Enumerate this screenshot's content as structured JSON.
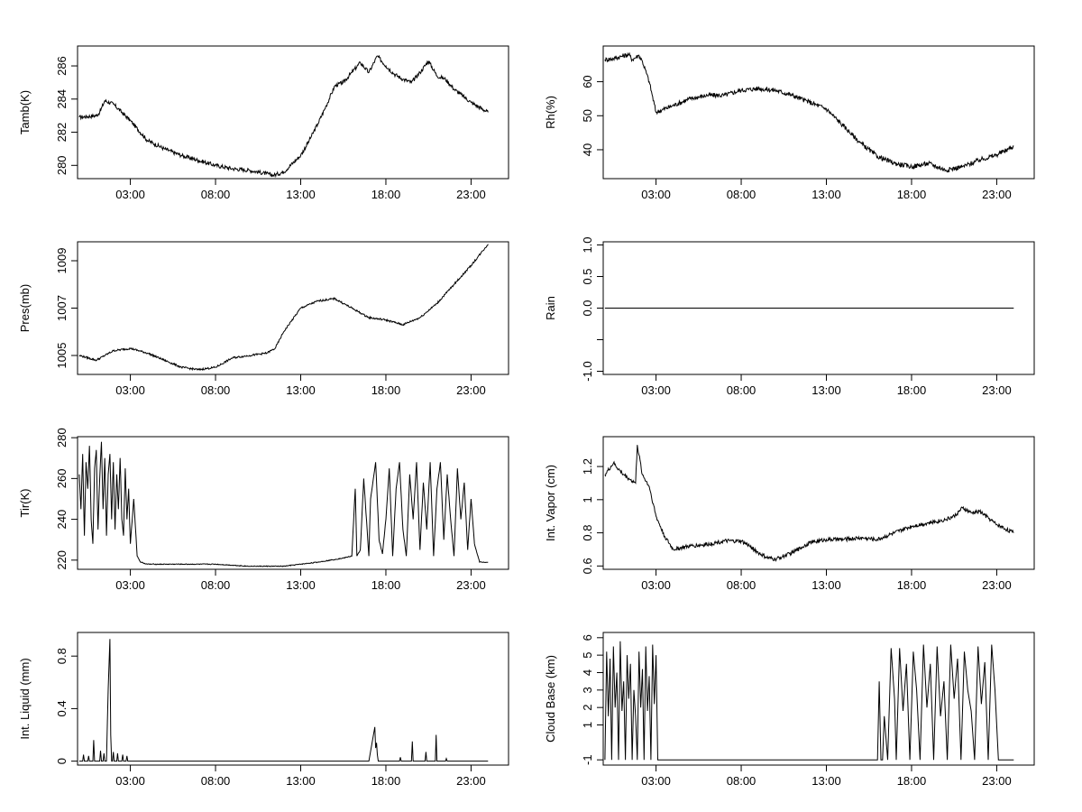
{
  "chart_data": [
    {
      "type": "line",
      "ylabel": "Tamb(K)",
      "xlabel": "",
      "x_ticks": [
        "03:00",
        "08:00",
        "13:00",
        "18:00",
        "23:00"
      ],
      "x_tick_hours": [
        3,
        8,
        13,
        18,
        23
      ],
      "xlim_hours": [
        -0.1,
        25.2
      ],
      "y_ticks": [
        280,
        282,
        284,
        286
      ],
      "ylim": [
        279.2,
        287.2
      ],
      "noise": 0.12,
      "x": [
        0,
        1,
        1.2,
        1.5,
        2,
        3,
        4,
        5,
        6,
        7,
        8,
        9,
        10,
        11,
        11.4,
        12,
        13,
        13.5,
        14,
        14.5,
        15,
        15.5,
        16,
        16.5,
        17,
        17.5,
        18,
        18.5,
        19,
        19.5,
        20,
        20.5,
        21,
        21.5,
        22,
        23,
        24
      ],
      "y": [
        282.9,
        283.0,
        283.2,
        283.9,
        283.7,
        282.7,
        281.5,
        281.0,
        280.6,
        280.3,
        280.0,
        279.8,
        279.7,
        279.5,
        279.4,
        279.6,
        280.6,
        281.5,
        282.5,
        283.6,
        284.8,
        285.0,
        285.6,
        286.2,
        285.6,
        286.6,
        286.0,
        285.5,
        285.2,
        285.0,
        285.6,
        286.3,
        285.4,
        285.2,
        284.6,
        283.8,
        283.2
      ]
    },
    {
      "type": "line",
      "ylabel": "Rh(%)",
      "xlabel": "",
      "x_ticks": [
        "03:00",
        "08:00",
        "13:00",
        "18:00",
        "23:00"
      ],
      "x_tick_hours": [
        3,
        8,
        13,
        18,
        23
      ],
      "xlim_hours": [
        -0.1,
        25.2
      ],
      "y_ticks": [
        40,
        50,
        60
      ],
      "ylim": [
        31.5,
        70.5
      ],
      "noise": 0.7,
      "x": [
        0,
        0.5,
        1,
        1.4,
        1.6,
        2,
        2.2,
        2.6,
        3,
        4,
        5,
        6,
        7,
        8,
        9,
        10,
        11,
        12,
        13,
        14,
        15,
        16,
        17,
        18,
        19,
        20,
        21,
        22,
        23,
        24
      ],
      "y": [
        66.5,
        66.8,
        67.5,
        68,
        66.5,
        67.8,
        66,
        60,
        51,
        53,
        55,
        56,
        56,
        57.5,
        58,
        57.5,
        56,
        54,
        52,
        47,
        42,
        38,
        36,
        35,
        36,
        34,
        35,
        37,
        38.5,
        41
      ]
    },
    {
      "type": "line",
      "ylabel": "Pres(mb)",
      "xlabel": "",
      "x_ticks": [
        "03:00",
        "08:00",
        "13:00",
        "18:00",
        "23:00"
      ],
      "x_tick_hours": [
        3,
        8,
        13,
        18,
        23
      ],
      "xlim_hours": [
        -0.1,
        25.2
      ],
      "y_ticks": [
        1005,
        1007,
        1009
      ],
      "ylim": [
        1004.2,
        1009.8
      ],
      "noise": 0.04,
      "x": [
        0,
        1,
        2,
        3,
        4,
        5,
        6,
        7,
        8,
        9,
        10,
        11,
        11.5,
        12,
        13,
        14,
        15,
        16,
        17,
        18,
        19,
        20,
        21,
        22,
        23,
        24
      ],
      "y": [
        1005.0,
        1004.8,
        1005.2,
        1005.3,
        1005.1,
        1004.8,
        1004.5,
        1004.4,
        1004.5,
        1004.9,
        1005.0,
        1005.1,
        1005.3,
        1006.0,
        1007.0,
        1007.3,
        1007.4,
        1007.0,
        1006.6,
        1006.5,
        1006.3,
        1006.6,
        1007.2,
        1008.0,
        1008.8,
        1009.7
      ]
    },
    {
      "type": "line",
      "ylabel": "Rain",
      "xlabel": "",
      "x_ticks": [
        "03:00",
        "08:00",
        "13:00",
        "18:00",
        "23:00"
      ],
      "x_tick_hours": [
        3,
        8,
        13,
        18,
        23
      ],
      "xlim_hours": [
        -0.1,
        25.2
      ],
      "y_ticks": [
        -1.0,
        -0.5,
        0.0,
        0.5,
        1.0
      ],
      "y_tick_labels": [
        "-1.0",
        "",
        "0.0",
        "0.5",
        "1.0"
      ],
      "ylim": [
        -1.05,
        1.05
      ],
      "noise": 0,
      "x": [
        0,
        24
      ],
      "y": [
        0,
        0
      ]
    },
    {
      "type": "line",
      "ylabel": "Tir(K)",
      "xlabel": "",
      "x_ticks": [
        "03:00",
        "08:00",
        "13:00",
        "18:00",
        "23:00"
      ],
      "x_tick_hours": [
        3,
        8,
        13,
        18,
        23
      ],
      "xlim_hours": [
        -0.1,
        25.2
      ],
      "y_ticks": [
        220,
        240,
        260,
        280
      ],
      "ylim": [
        215.5,
        280.5
      ],
      "noise": 0.2,
      "x": [
        0,
        0.1,
        0.2,
        0.3,
        0.4,
        0.5,
        0.6,
        0.7,
        0.8,
        0.9,
        1.0,
        1.1,
        1.2,
        1.3,
        1.4,
        1.5,
        1.6,
        1.7,
        1.8,
        1.9,
        2.0,
        2.1,
        2.2,
        2.3,
        2.4,
        2.5,
        2.6,
        2.7,
        2.8,
        2.9,
        3.0,
        3.2,
        3.4,
        3.6,
        4,
        6,
        8,
        10,
        12,
        14,
        15.5,
        16,
        16.2,
        16.3,
        16.5,
        16.7,
        17.0,
        17.1,
        17.4,
        17.6,
        17.8,
        18.0,
        18.2,
        18.4,
        18.6,
        18.8,
        19.0,
        19.2,
        19.4,
        19.6,
        19.8,
        20.0,
        20.2,
        20.4,
        20.6,
        20.8,
        21.0,
        21.2,
        21.4,
        21.6,
        21.8,
        22.0,
        22.2,
        22.4,
        22.6,
        22.8,
        23.0,
        23.2,
        23.5,
        24
      ],
      "y": [
        262,
        245,
        272,
        232,
        268,
        255,
        276,
        240,
        228,
        265,
        274,
        235,
        260,
        278,
        245,
        270,
        232,
        262,
        272,
        240,
        268,
        235,
        262,
        245,
        270,
        240,
        232,
        265,
        240,
        255,
        228,
        250,
        222,
        219,
        218,
        218,
        218,
        217,
        217,
        219,
        221,
        222,
        255,
        222,
        225,
        260,
        222,
        250,
        268,
        230,
        223,
        240,
        265,
        222,
        255,
        268,
        235,
        222,
        262,
        240,
        268,
        225,
        258,
        235,
        268,
        222,
        255,
        268,
        230,
        262,
        240,
        222,
        265,
        240,
        258,
        225,
        250,
        228,
        219,
        219
      ]
    },
    {
      "type": "line",
      "ylabel": "Int. Vapor (cm)",
      "xlabel": "",
      "x_ticks": [
        "03:00",
        "08:00",
        "13:00",
        "18:00",
        "23:00"
      ],
      "x_tick_hours": [
        3,
        8,
        13,
        18,
        23
      ],
      "xlim_hours": [
        -0.1,
        25.2
      ],
      "y_ticks": [
        0.6,
        0.8,
        1.0,
        1.2
      ],
      "ylim": [
        0.58,
        1.38
      ],
      "noise": 0.012,
      "x": [
        0,
        0.5,
        1,
        1.5,
        1.8,
        1.9,
        2.2,
        2.6,
        3,
        3.5,
        4,
        5,
        6,
        7,
        8,
        8.5,
        9,
        9.5,
        10,
        11,
        12,
        13,
        14,
        15,
        16,
        17,
        18,
        19,
        20,
        20.5,
        21,
        21.5,
        22,
        23,
        24
      ],
      "y": [
        1.15,
        1.22,
        1.16,
        1.12,
        1.1,
        1.33,
        1.15,
        1.08,
        0.9,
        0.78,
        0.7,
        0.72,
        0.73,
        0.75,
        0.75,
        0.72,
        0.68,
        0.65,
        0.64,
        0.68,
        0.74,
        0.76,
        0.76,
        0.77,
        0.76,
        0.8,
        0.84,
        0.86,
        0.88,
        0.9,
        0.95,
        0.92,
        0.93,
        0.85,
        0.8
      ]
    },
    {
      "type": "line",
      "ylabel": "Int. Liquid (mm)",
      "xlabel": "",
      "x_ticks": [
        "03:00",
        "08:00",
        "13:00",
        "18:00",
        "23:00"
      ],
      "x_tick_hours": [
        3,
        8,
        13,
        18,
        23
      ],
      "xlim_hours": [
        -0.1,
        25.2
      ],
      "y_ticks": [
        0.0,
        0.4,
        0.8
      ],
      "ylim": [
        -0.03,
        0.98
      ],
      "noise": 0,
      "x": [
        0,
        0.2,
        0.25,
        0.3,
        0.5,
        0.55,
        0.6,
        0.8,
        0.85,
        0.9,
        1.2,
        1.25,
        1.3,
        1.4,
        1.45,
        1.5,
        1.6,
        1.65,
        1.7,
        1.8,
        1.85,
        1.9,
        1.95,
        2.0,
        2.05,
        2.2,
        2.25,
        2.3,
        2.5,
        2.55,
        2.6,
        2.75,
        2.8,
        2.85,
        3,
        17,
        17.35,
        17.4,
        17.45,
        17.5,
        17.55,
        18.8,
        18.85,
        18.9,
        19.5,
        19.55,
        19.6,
        20.3,
        20.35,
        20.4,
        20.9,
        20.95,
        21.0,
        21.5,
        21.55,
        21.6,
        24
      ],
      "y": [
        0,
        0,
        0.05,
        0,
        0,
        0.04,
        0,
        0,
        0.16,
        0,
        0,
        0.08,
        0,
        0,
        0.06,
        0,
        0,
        0.3,
        0.55,
        0.93,
        0.2,
        0,
        0,
        0.07,
        0,
        0,
        0.06,
        0,
        0,
        0.05,
        0,
        0,
        0.04,
        0,
        0,
        0,
        0.26,
        0.1,
        0.14,
        0.05,
        0,
        0,
        0.03,
        0,
        0,
        0.15,
        0,
        0,
        0.07,
        0,
        0,
        0.2,
        0,
        0,
        0.02,
        0,
        0
      ]
    },
    {
      "type": "line",
      "ylabel": "Cloud Base (km)",
      "xlabel": "",
      "x_ticks": [
        "03:00",
        "08:00",
        "13:00",
        "18:00",
        "23:00"
      ],
      "x_tick_hours": [
        3,
        8,
        13,
        18,
        23
      ],
      "xlim_hours": [
        -0.1,
        25.2
      ],
      "y_ticks": [
        -1,
        1,
        2,
        3,
        4,
        5,
        6
      ],
      "ylim": [
        -1.3,
        6.3
      ],
      "noise": 0,
      "x": [
        0,
        0.1,
        0.2,
        0.3,
        0.4,
        0.5,
        0.6,
        0.7,
        0.8,
        0.9,
        1.0,
        1.1,
        1.2,
        1.3,
        1.4,
        1.5,
        1.6,
        1.7,
        1.8,
        1.9,
        2.0,
        2.1,
        2.2,
        2.3,
        2.4,
        2.5,
        2.6,
        2.7,
        2.8,
        2.9,
        3.0,
        3.1,
        3.3,
        16.0,
        16.1,
        16.2,
        16.3,
        16.4,
        16.6,
        16.8,
        17.0,
        17.1,
        17.3,
        17.5,
        17.7,
        17.9,
        18.1,
        18.3,
        18.5,
        18.7,
        18.9,
        19.1,
        19.3,
        19.5,
        19.7,
        19.9,
        20.1,
        20.3,
        20.5,
        20.7,
        20.9,
        21.1,
        21.3,
        21.5,
        21.7,
        21.9,
        22.1,
        22.3,
        22.5,
        22.7,
        22.9,
        23.1,
        23.3,
        24
      ],
      "y": [
        -1,
        5.2,
        1.5,
        4.8,
        -1,
        5.5,
        2.0,
        4.0,
        -1,
        5.8,
        1.8,
        3.5,
        -1,
        5.0,
        2.5,
        4.5,
        -1,
        3.0,
        1.5,
        -1,
        5.2,
        2.0,
        4.2,
        -1,
        5.5,
        1.8,
        3.8,
        -1,
        5.6,
        2.2,
        5.0,
        -1,
        -1,
        -1,
        3.5,
        -1,
        -1,
        1.5,
        -1,
        5.4,
        2.5,
        -1,
        5.4,
        1.8,
        4.5,
        -1,
        5.2,
        3.0,
        -1,
        5.6,
        2.0,
        4.5,
        -1,
        5.5,
        1.5,
        3.5,
        -1,
        5.6,
        2.5,
        4.8,
        -1,
        5.2,
        3.0,
        1.8,
        -1,
        5.5,
        2.2,
        4.6,
        -1,
        5.6,
        3.0,
        -1,
        -1,
        -1
      ]
    }
  ]
}
